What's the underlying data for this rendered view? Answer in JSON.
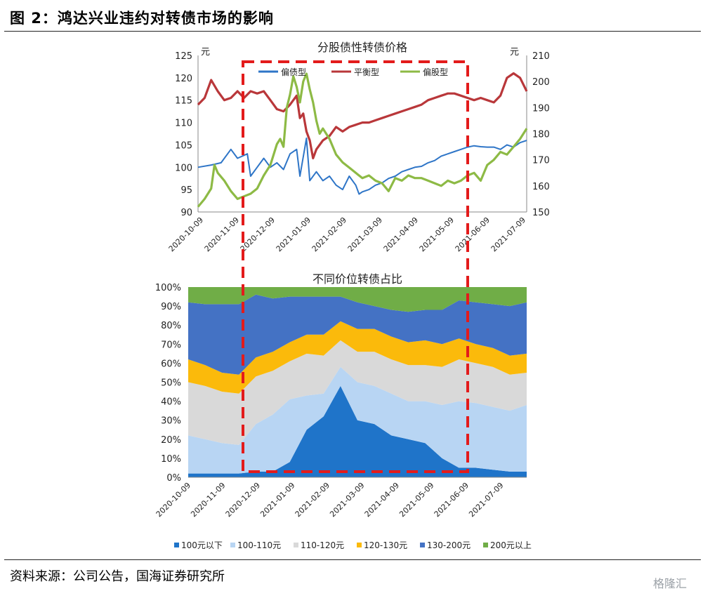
{
  "figure": {
    "title": "图 2：鸿达兴业违约对转债市场的影响",
    "source": "资料来源：公司公告，国海证券研究所",
    "watermark": "格隆汇"
  },
  "colors": {
    "偏债型": "#2E75C7",
    "平衡型": "#B9373A",
    "偏股型": "#8DBA45",
    "100元以下": "#1F74C9",
    "100-110元": "#B8D5F3",
    "110-120元": "#D9D9D9",
    "120-130元": "#FBBA0B",
    "130-200元": "#4472C4",
    "200元以上": "#70AD47",
    "highlight": "#E31B1B"
  },
  "chart_data": [
    {
      "type": "line",
      "title": "分股债性转债价格",
      "left_unit": "元",
      "right_unit": "元",
      "x_ticks": [
        "2020-10-09",
        "2020-11-09",
        "2020-12-09",
        "2021-01-09",
        "2021-02-09",
        "2021-03-09",
        "2021-04-09",
        "2021-05-09",
        "2021-06-09",
        "2021-07-09"
      ],
      "y_left": {
        "range": [
          90,
          125
        ],
        "ticks": [
          "90",
          "95",
          "100",
          "105",
          "110",
          "115",
          "120",
          "125"
        ]
      },
      "y_right": {
        "range": [
          150,
          210
        ],
        "ticks": [
          "150",
          "160",
          "170",
          "180",
          "190",
          "200",
          "210"
        ]
      },
      "legend": [
        "偏债型",
        "平衡型",
        "偏股型"
      ],
      "series": [
        {
          "name": "偏债型",
          "axis": "left",
          "x": [
            0,
            0.04,
            0.07,
            0.1,
            0.12,
            0.15,
            0.16,
            0.18,
            0.2,
            0.22,
            0.24,
            0.26,
            0.28,
            0.3,
            0.31,
            0.33,
            0.34,
            0.36,
            0.38,
            0.4,
            0.42,
            0.44,
            0.46,
            0.48,
            0.49,
            0.5,
            0.52,
            0.54,
            0.56,
            0.58,
            0.6,
            0.62,
            0.64,
            0.66,
            0.68,
            0.7,
            0.72,
            0.74,
            0.76,
            0.78,
            0.8,
            0.82,
            0.84,
            0.86,
            0.88,
            0.9,
            0.92,
            0.94,
            0.96,
            0.98,
            1.0
          ],
          "y": [
            100,
            100.5,
            101,
            104,
            102,
            103,
            98,
            100,
            102,
            100,
            101,
            99.5,
            103,
            104,
            98,
            106.5,
            97,
            99,
            97,
            98,
            96,
            95,
            98,
            96,
            94,
            94.5,
            95,
            96,
            96.5,
            97.5,
            98,
            99,
            99.5,
            100,
            100.2,
            101,
            101.5,
            102.5,
            103,
            103.5,
            104,
            104.5,
            104.8,
            104.6,
            104.5,
            104.5,
            104,
            105,
            104.5,
            105.5,
            106
          ]
        },
        {
          "name": "平衡型",
          "axis": "left",
          "x": [
            0,
            0.02,
            0.04,
            0.06,
            0.08,
            0.1,
            0.12,
            0.14,
            0.16,
            0.18,
            0.2,
            0.22,
            0.24,
            0.26,
            0.28,
            0.3,
            0.31,
            0.32,
            0.33,
            0.34,
            0.35,
            0.36,
            0.38,
            0.4,
            0.42,
            0.44,
            0.46,
            0.48,
            0.5,
            0.52,
            0.54,
            0.56,
            0.58,
            0.6,
            0.62,
            0.64,
            0.66,
            0.68,
            0.7,
            0.72,
            0.74,
            0.76,
            0.78,
            0.8,
            0.82,
            0.84,
            0.86,
            0.88,
            0.9,
            0.92,
            0.94,
            0.96,
            0.98,
            1.0
          ],
          "y": [
            114,
            115.5,
            119.5,
            117,
            115,
            115.5,
            117,
            115.5,
            117,
            116.5,
            117,
            115,
            113,
            112.5,
            114,
            116,
            111,
            112,
            108,
            106,
            102,
            104,
            106,
            107,
            109,
            108,
            109,
            109.5,
            110,
            110,
            110.5,
            111,
            111.5,
            112,
            112.5,
            113,
            113.5,
            114,
            115,
            115.5,
            116,
            116.5,
            116.5,
            116,
            115.5,
            115,
            115.5,
            115,
            114.5,
            116,
            120,
            121,
            120,
            117
          ]
        },
        {
          "name": "偏股型",
          "axis": "right",
          "x": [
            0,
            0.02,
            0.04,
            0.05,
            0.06,
            0.08,
            0.1,
            0.12,
            0.14,
            0.16,
            0.18,
            0.2,
            0.22,
            0.24,
            0.25,
            0.26,
            0.27,
            0.28,
            0.29,
            0.3,
            0.31,
            0.32,
            0.33,
            0.34,
            0.35,
            0.36,
            0.37,
            0.38,
            0.4,
            0.42,
            0.44,
            0.46,
            0.48,
            0.5,
            0.52,
            0.54,
            0.56,
            0.58,
            0.6,
            0.62,
            0.64,
            0.66,
            0.68,
            0.7,
            0.72,
            0.74,
            0.76,
            0.78,
            0.8,
            0.82,
            0.84,
            0.86,
            0.88,
            0.9,
            0.92,
            0.94,
            0.96,
            0.98,
            1.0
          ],
          "y": [
            152,
            155,
            159,
            168,
            165,
            162,
            158,
            155,
            156,
            157,
            159,
            164,
            168,
            176,
            178,
            175,
            190,
            195,
            202,
            198,
            192,
            200,
            203,
            197,
            192,
            185,
            180,
            182,
            178,
            172,
            169,
            167,
            165,
            163,
            164,
            162,
            161,
            158,
            163,
            162,
            164,
            163,
            163,
            162,
            161,
            160,
            162,
            161,
            162,
            164,
            165,
            162,
            168,
            170,
            173,
            172,
            175,
            178,
            182
          ]
        }
      ]
    },
    {
      "type": "area",
      "title": "不同价位转债占比",
      "x_ticks": [
        "2020-10-09",
        "2020-11-09",
        "2020-12-09",
        "2021-01-09",
        "2021-02-09",
        "2021-03-09",
        "2021-04-09",
        "2021-05-09",
        "2021-06-09",
        "2021-07-09"
      ],
      "y_ticks": [
        "0%",
        "10%",
        "20%",
        "30%",
        "40%",
        "50%",
        "60%",
        "70%",
        "80%",
        "90%",
        "100%"
      ],
      "x": [
        0,
        0.05,
        0.1,
        0.15,
        0.2,
        0.25,
        0.3,
        0.35,
        0.4,
        0.45,
        0.5,
        0.55,
        0.6,
        0.65,
        0.7,
        0.75,
        0.8,
        0.85,
        0.9,
        0.95,
        1.0
      ],
      "stacked": true,
      "series": [
        {
          "name": "100元以下",
          "values": [
            2,
            2,
            2,
            2,
            3,
            3,
            8,
            25,
            32,
            48,
            30,
            28,
            22,
            20,
            18,
            10,
            5,
            5,
            4,
            3,
            3
          ]
        },
        {
          "name": "100-110元",
          "values": [
            20,
            18,
            16,
            15,
            25,
            30,
            33,
            18,
            12,
            10,
            20,
            20,
            22,
            20,
            22,
            28,
            35,
            34,
            33,
            32,
            35
          ]
        },
        {
          "name": "110-120元",
          "values": [
            28,
            28,
            27,
            27,
            25,
            23,
            20,
            22,
            20,
            14,
            16,
            18,
            18,
            19,
            19,
            20,
            22,
            21,
            21,
            19,
            17
          ]
        },
        {
          "name": "120-130元",
          "values": [
            12,
            11,
            10,
            10,
            10,
            10,
            10,
            10,
            11,
            10,
            12,
            12,
            12,
            12,
            13,
            12,
            11,
            10,
            10,
            10,
            10
          ]
        },
        {
          "name": "130-200元",
          "values": [
            30,
            32,
            36,
            37,
            33,
            28,
            24,
            20,
            20,
            13,
            14,
            12,
            14,
            16,
            16,
            18,
            20,
            22,
            23,
            26,
            27
          ]
        },
        {
          "name": "200元以上",
          "values": [
            8,
            9,
            9,
            9,
            4,
            6,
            5,
            5,
            5,
            5,
            8,
            10,
            12,
            13,
            12,
            12,
            7,
            8,
            9,
            10,
            8
          ]
        }
      ]
    }
  ]
}
